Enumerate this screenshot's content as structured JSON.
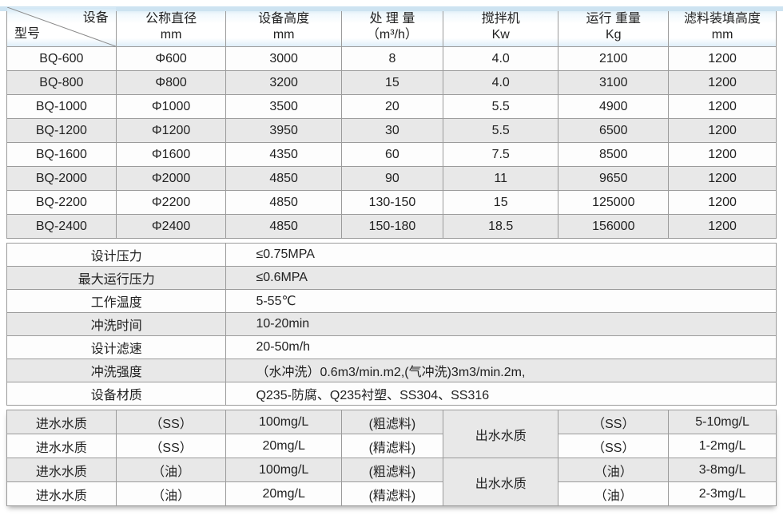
{
  "theme": {
    "header_blue": "#d9ecf8",
    "stripe_gray": "#e8e8e8",
    "row_white": "#fdfdfd",
    "border_gray": "#9b9b9b",
    "outer_border": "#8a8a8a",
    "top_strip_blue": "#cde3f1",
    "text_dark": "#222222"
  },
  "main_table": {
    "header": {
      "diagonal_top_right": "设备",
      "diagonal_bottom_left": "型号",
      "columns": [
        {
          "l1": "公称直径",
          "l2": "mm"
        },
        {
          "l1": "设备高度",
          "l2": "mm"
        },
        {
          "l1": "处 理 量",
          "l2": "（m³/h）"
        },
        {
          "l1": "搅拌机",
          "l2": "Kw"
        },
        {
          "l1": "运行 重量",
          "l2": "Kg"
        },
        {
          "l1": "滤料装填高度",
          "l2": "mm"
        }
      ]
    },
    "rows": [
      [
        "BQ-600",
        "Φ600",
        "3000",
        "8",
        "4.0",
        "2100",
        "1200"
      ],
      [
        "BQ-800",
        "Φ800",
        "3200",
        "15",
        "4.0",
        "3100",
        "1200"
      ],
      [
        "BQ-1000",
        "Φ1000",
        "3500",
        "20",
        "5.5",
        "4900",
        "1200"
      ],
      [
        "BQ-1200",
        "Φ1200",
        "3950",
        "30",
        "5.5",
        "6500",
        "1200"
      ],
      [
        "BQ-1600",
        "Φ1600",
        "4350",
        "60",
        "7.5",
        "8500",
        "1200"
      ],
      [
        "BQ-2000",
        "Φ2000",
        "4850",
        "90",
        "11",
        "9650",
        "1200"
      ],
      [
        "BQ-2200",
        "Φ2200",
        "4850",
        "130-150",
        "15",
        "125000",
        "1200"
      ],
      [
        "BQ-2400",
        "Φ2400",
        "4850",
        "150-180",
        "18.5",
        "156000",
        "1200"
      ]
    ]
  },
  "spec_table": {
    "rows": [
      {
        "label": "设计压力",
        "value": "≤0.75MPA"
      },
      {
        "label": "最大运行压力",
        "value": "≤0.6MPA"
      },
      {
        "label": "工作温度",
        "value": "5-55℃"
      },
      {
        "label": "冲洗时间",
        "value": "10-20min"
      },
      {
        "label": "设计滤速",
        "value": "20-50m/h"
      },
      {
        "label": "冲洗强度",
        "value": "（水冲洗）0.6m3/min.m2,(气冲洗)3m3/min.2m,"
      },
      {
        "label": "设备材质",
        "value": "Q235-防腐、Q235衬塑、SS304、SS316"
      }
    ]
  },
  "water_table": {
    "groups": [
      {
        "outlet_label": "出水水质",
        "rows": [
          {
            "inlet_label": "进水水质",
            "param": "（SS）",
            "value": "100mg/L",
            "media": "(粗滤料)",
            "outlet_param": "（SS）",
            "outlet_value": "5-10mg/L"
          },
          {
            "inlet_label": "进水水质",
            "param": "（SS）",
            "value": "20mg/L",
            "media": "(精滤料)",
            "outlet_param": "（SS）",
            "outlet_value": "1-2mg/L"
          }
        ]
      },
      {
        "outlet_label": "出水水质",
        "rows": [
          {
            "inlet_label": "进水水质",
            "param": "（油）",
            "value": "100mg/L",
            "media": "(粗滤料)",
            "outlet_param": "（油）",
            "outlet_value": "3-8mg/L"
          },
          {
            "inlet_label": "进水水质",
            "param": "（油）",
            "value": "20mg/L",
            "media": "(精滤料)",
            "outlet_param": "（油）",
            "outlet_value": "2-3mg/L"
          }
        ]
      }
    ]
  }
}
